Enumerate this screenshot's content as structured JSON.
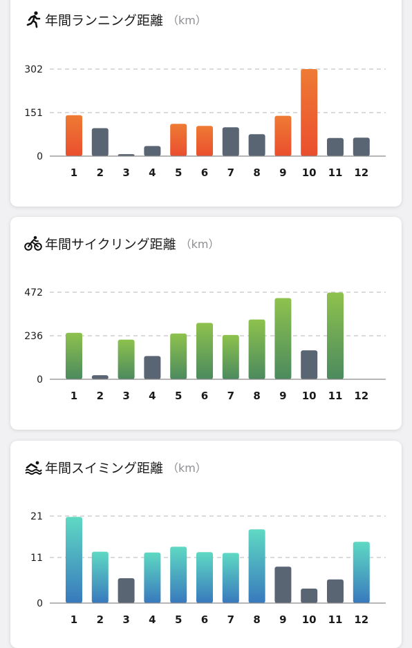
{
  "colors": {
    "gray_bar": "#5a6574",
    "grid": "#c4c4c4",
    "axis": "#8a8a8a",
    "running_top": "#ee7b34",
    "running_bottom": "#ea4e2e",
    "cycling_top": "#8ec24d",
    "cycling_bottom": "#4b8a5e",
    "swimming_top": "#5fd9c3",
    "swimming_bottom": "#3879bd"
  },
  "charts": [
    {
      "title": "年間ランニング距離",
      "unit": "（km）",
      "icon": "running-icon"
    },
    {
      "title": "年間サイクリング距離",
      "unit": "（km）",
      "icon": "cycling-icon"
    },
    {
      "title": "年間スイミング距離",
      "unit": "（km）",
      "icon": "swimming-icon"
    }
  ],
  "chart_data": [
    {
      "type": "bar",
      "title": "年間ランニング距離",
      "ylabel": "（km）",
      "categories": [
        "1",
        "2",
        "3",
        "4",
        "5",
        "6",
        "7",
        "8",
        "9",
        "10",
        "11",
        "12"
      ],
      "values": [
        142,
        97,
        7,
        35,
        112,
        105,
        100,
        76,
        140,
        302,
        63,
        64
      ],
      "highlight": [
        true,
        false,
        false,
        false,
        true,
        true,
        false,
        false,
        true,
        true,
        false,
        false
      ],
      "yticks": [
        0,
        151,
        302
      ],
      "ylim": [
        0,
        302
      ],
      "scheme": "running",
      "grid": true
    },
    {
      "type": "bar",
      "title": "年間サイクリング距離",
      "ylabel": "（km）",
      "categories": [
        "1",
        "2",
        "3",
        "4",
        "5",
        "6",
        "7",
        "8",
        "9",
        "10",
        "11",
        "12"
      ],
      "values": [
        252,
        22,
        215,
        126,
        248,
        306,
        240,
        324,
        440,
        157,
        470,
        0
      ],
      "highlight": [
        true,
        false,
        true,
        false,
        true,
        true,
        true,
        true,
        true,
        false,
        true,
        false
      ],
      "yticks": [
        0,
        236,
        472
      ],
      "ylim": [
        0,
        472
      ],
      "scheme": "cycling",
      "grid": true
    },
    {
      "type": "bar",
      "title": "年間スイミング距離",
      "ylabel": "（km）",
      "categories": [
        "1",
        "2",
        "3",
        "4",
        "5",
        "6",
        "7",
        "8",
        "9",
        "10",
        "11",
        "12"
      ],
      "values": [
        20.8,
        12.4,
        6,
        12.2,
        13.6,
        12.3,
        12.1,
        17.8,
        8.8,
        3.5,
        5.7,
        14.8
      ],
      "highlight": [
        true,
        true,
        false,
        true,
        true,
        true,
        true,
        true,
        false,
        false,
        false,
        true
      ],
      "yticks": [
        0,
        11,
        21
      ],
      "ylim": [
        0,
        21
      ],
      "scheme": "swimming",
      "grid": true
    }
  ]
}
